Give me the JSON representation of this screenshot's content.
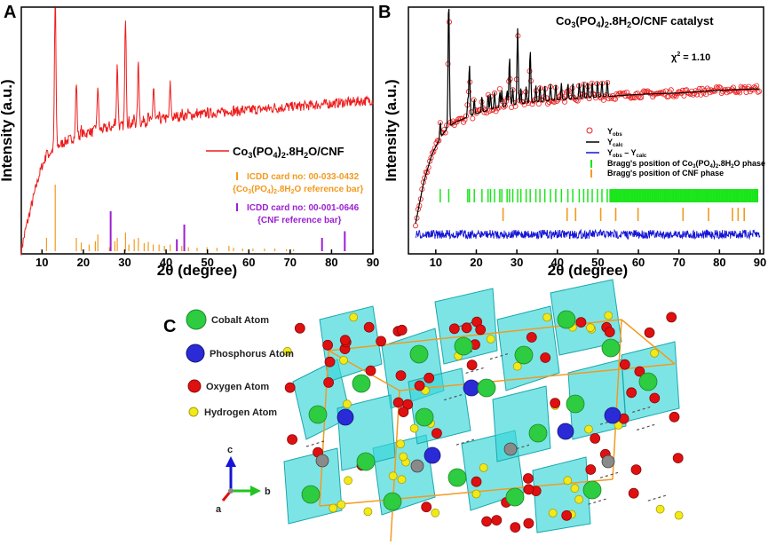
{
  "colors": {
    "red": "#ee1c1c",
    "orange": "#f39a1e",
    "purple": "#9b1fd1",
    "green": "#19e619",
    "blue": "#1414d6",
    "black": "#000000",
    "teal": "#38d5d8",
    "cobalt": "#2ecc40",
    "phosphorus": "#2a2ad6",
    "oxygen": "#e01010",
    "hydrogen": "#f2ea18"
  },
  "panels": {
    "a": {
      "letter": "A"
    },
    "b": {
      "letter": "B"
    },
    "c": {
      "letter": "C"
    }
  },
  "chart_data": [
    {
      "type": "line",
      "panel": "A",
      "xlabel": "2θ (degree)",
      "ylabel": "Intensity (a.u.)",
      "xlim": [
        5,
        90
      ],
      "xticks": [
        10,
        20,
        30,
        40,
        50,
        60,
        70,
        80,
        90
      ],
      "series": [
        {
          "name": "Co3(PO4)2.8H2O/CNF",
          "label_main": "Co",
          "label_sub1": "3",
          "label_mid": "(PO",
          "label_sub2": "4",
          "label_mid2": ")",
          "label_sub3": "2",
          "label_mid3": ".8H",
          "label_sub4": "2",
          "label_end": "O/CNF",
          "x": [
            5,
            6,
            7,
            8,
            9,
            10,
            11,
            12,
            13,
            14,
            16,
            18,
            20,
            22,
            25,
            30,
            35,
            40,
            45,
            50,
            55,
            60,
            65,
            70,
            75,
            80,
            85,
            90
          ],
          "y": [
            0.0,
            0.12,
            0.22,
            0.32,
            0.42,
            0.5,
            0.55,
            0.58,
            0.6,
            0.62,
            0.65,
            0.67,
            0.69,
            0.7,
            0.72,
            0.74,
            0.76,
            0.78,
            0.8,
            0.81,
            0.82,
            0.83,
            0.84,
            0.85,
            0.86,
            0.87,
            0.88,
            0.89
          ],
          "peaks": [
            {
              "x": 13.2,
              "y": 1.4
            },
            {
              "x": 18.3,
              "y": 0.95
            },
            {
              "x": 23.5,
              "y": 0.92
            },
            {
              "x": 28.2,
              "y": 1.05
            },
            {
              "x": 30.2,
              "y": 1.32
            },
            {
              "x": 33.3,
              "y": 1.07
            },
            {
              "x": 37.0,
              "y": 0.95
            },
            {
              "x": 41.0,
              "y": 0.96
            }
          ]
        }
      ],
      "reference_bars": [
        {
          "name": "ICDD card no: 00-033-0432",
          "name_line2_pre": "{Co",
          "name_line2_sub1": "3",
          "name_line2_mid": "(PO",
          "name_line2_sub2": "4",
          "name_line2_mid2": ")",
          "name_line2_sub3": "2",
          "name_line2_mid3": ".8H",
          "name_line2_sub4": "2",
          "name_line2_end": "O reference bar}",
          "positions": [
            11.1,
            13.2,
            18.3,
            19.5,
            21.4,
            22.9,
            23.5,
            26.3,
            27.6,
            28.2,
            30.2,
            31.0,
            32.3,
            33.3,
            34.7,
            35.7,
            36.9,
            38.3,
            39.6,
            41.0,
            42.6,
            43.8,
            45.4,
            47.5,
            49.9,
            52.3,
            55.2,
            56.3,
            58.5,
            61.0,
            63.8,
            66.3,
            69.1,
            70.8
          ],
          "heights": [
            0.2,
            1.0,
            0.2,
            0.13,
            0.1,
            0.15,
            0.25,
            0.06,
            0.15,
            0.2,
            0.28,
            0.1,
            0.18,
            0.2,
            0.12,
            0.14,
            0.1,
            0.1,
            0.08,
            0.1,
            0.06,
            0.08,
            0.06,
            0.05,
            0.06,
            0.05,
            0.08,
            0.05,
            0.04,
            0.04,
            0.04,
            0.04,
            0.03,
            0.03
          ]
        },
        {
          "name": "ICDD card no: 00-001-0646",
          "name_line2": "{CNF reference bar}",
          "positions": [
            26.6,
            42.6,
            44.4,
            77.7,
            83.2
          ],
          "heights": [
            0.6,
            0.18,
            0.4,
            0.2,
            0.3
          ]
        }
      ]
    },
    {
      "type": "scatter",
      "panel": "B",
      "title_pre": "Co",
      "title_sub1": "3",
      "title_mid": "(PO",
      "title_sub2": "4",
      "title_mid2": ")",
      "title_sub3": "2",
      "title_mid3": ".8H",
      "title_sub4": "2",
      "title_end": "O/CNF catalyst",
      "chi_pre": "χ",
      "chi_sup": "2",
      "chi_value": " = 1.10",
      "xlabel": "2θ (degree)",
      "ylabel": "Intensity (a.u.)",
      "xlim": [
        5,
        90
      ],
      "xticks": [
        10,
        20,
        30,
        40,
        50,
        60,
        70,
        80,
        90
      ],
      "legend": [
        {
          "key": "obs",
          "pre": "Y",
          "sub": "obs",
          "post": ""
        },
        {
          "key": "calc",
          "pre": "Y",
          "sub": "calc",
          "post": ""
        },
        {
          "key": "diff",
          "pre": "Y",
          "sub": "obs",
          "mid": " – Y",
          "sub2": "calc"
        },
        {
          "key": "bragg1",
          "pre": "Bragg's position of Co",
          "sub": "3",
          "mid": "(PO",
          "sub2": "4",
          "mid2": ")",
          "sub3": "2",
          "post": ".8H",
          "sub4": "2",
          "end": "O phase"
        },
        {
          "key": "bragg2",
          "text": "Bragg's position of CNF  phase"
        }
      ],
      "series": [
        {
          "name": "Yobs",
          "x": [
            5,
            7,
            9,
            11,
            13,
            15,
            20,
            25,
            30,
            40,
            50,
            60,
            70,
            80,
            90
          ],
          "y": [
            0.0,
            0.3,
            0.5,
            0.62,
            0.7,
            0.74,
            0.8,
            0.84,
            0.87,
            0.9,
            0.92,
            0.94,
            0.95,
            0.97,
            0.98
          ]
        },
        {
          "name": "Ycalc",
          "peaks": [
            {
              "x": 13.2,
              "y": 1.6
            },
            {
              "x": 30.2,
              "y": 1.3
            },
            {
              "x": 33.3,
              "y": 1.15
            },
            {
              "x": 28.2,
              "y": 1.1
            },
            {
              "x": 18.3,
              "y": 1.05
            }
          ]
        }
      ],
      "bragg_co_phase_positions": [
        11.1,
        13.2,
        17.9,
        18.3,
        19.5,
        21.4,
        22.9,
        23.5,
        24.5,
        25.8,
        26.3,
        27.6,
        28.2,
        29.0,
        30.2,
        31.0,
        32.3,
        33.3,
        34.7,
        35.7,
        36.9,
        38.3,
        39.6,
        41.0,
        42.6,
        43.8,
        45.4,
        46.5,
        47.5,
        48.6,
        49.9,
        51.0,
        52.3
      ],
      "bragg_cnf_positions": [
        26.6,
        42.4,
        44.5,
        50.7,
        54.4,
        59.9,
        71.0,
        77.3,
        83.2,
        84.6,
        86.1
      ]
    }
  ],
  "structure": {
    "legend": [
      {
        "name": "Cobalt Atom",
        "color_key": "cobalt"
      },
      {
        "name": "Phosphorus Atom",
        "color_key": "phosphorus"
      },
      {
        "name": "Oxygen Atom",
        "color_key": "oxygen"
      },
      {
        "name": "Hydrogen Atom",
        "color_key": "hydrogen"
      }
    ],
    "axes": {
      "a": "a",
      "b": "b",
      "c": "c"
    }
  }
}
